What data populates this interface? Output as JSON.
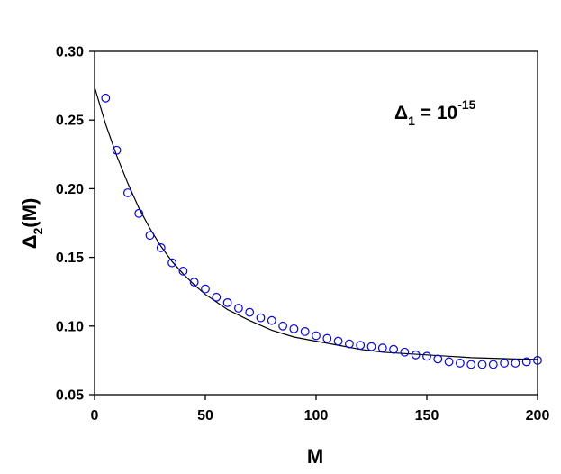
{
  "chart_data": {
    "type": "scatter",
    "xlabel": "M",
    "ylabel": {
      "base": "Δ",
      "subscript": "2",
      "suffix": "(M)"
    },
    "xlim": [
      0,
      200
    ],
    "ylim": [
      0.05,
      0.3
    ],
    "xticks": [
      "0",
      "50",
      "100",
      "150",
      "200"
    ],
    "yticks": [
      "0.05",
      "0.10",
      "0.15",
      "0.20",
      "0.25",
      "0.30"
    ],
    "grid": false,
    "annotation": {
      "base": "Δ",
      "subscript": "1",
      "equals": " = 10",
      "superscript": "-15"
    },
    "series": [
      {
        "kind": "scatter",
        "marker": "open-circle",
        "color": "#0000ff",
        "x": [
          5,
          10,
          15,
          20,
          25,
          30,
          35,
          40,
          45,
          50,
          55,
          60,
          65,
          70,
          75,
          80,
          85,
          90,
          95,
          100,
          105,
          110,
          115,
          120,
          125,
          130,
          135,
          140,
          145,
          150,
          155,
          160,
          165,
          170,
          175,
          180,
          185,
          190,
          195,
          200
        ],
        "y": [
          0.266,
          0.228,
          0.197,
          0.182,
          0.166,
          0.157,
          0.146,
          0.14,
          0.132,
          0.127,
          0.121,
          0.117,
          0.113,
          0.11,
          0.106,
          0.104,
          0.1,
          0.098,
          0.096,
          0.093,
          0.091,
          0.089,
          0.087,
          0.086,
          0.085,
          0.084,
          0.083,
          0.081,
          0.079,
          0.078,
          0.076,
          0.074,
          0.073,
          0.072,
          0.072,
          0.072,
          0.073,
          0.073,
          0.074,
          0.075
        ]
      },
      {
        "kind": "line",
        "color": "#000000",
        "x": [
          0,
          5,
          10,
          15,
          20,
          25,
          30,
          35,
          40,
          45,
          50,
          60,
          70,
          80,
          90,
          100,
          110,
          120,
          130,
          140,
          150,
          160,
          170,
          180,
          190,
          200
        ],
        "y": [
          0.274,
          0.247,
          0.224,
          0.204,
          0.186,
          0.171,
          0.158,
          0.147,
          0.138,
          0.13,
          0.123,
          0.112,
          0.104,
          0.097,
          0.092,
          0.089,
          0.086,
          0.083,
          0.081,
          0.08,
          0.079,
          0.078,
          0.077,
          0.0765,
          0.076,
          0.0757
        ]
      }
    ]
  }
}
